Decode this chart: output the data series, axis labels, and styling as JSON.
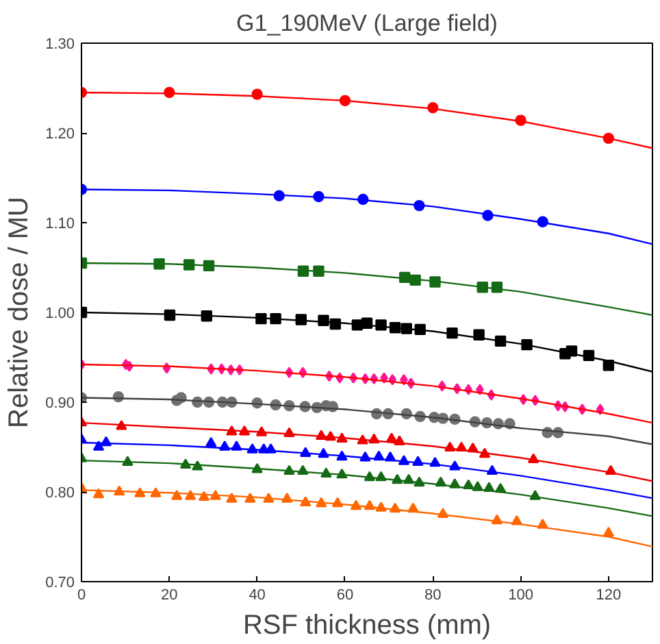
{
  "chart_data": {
    "type": "scatter",
    "title": "G1_190MeV (Large field)",
    "xlabel": "RSF thickness (mm)",
    "ylabel": "Relative dose / MU",
    "xlim": [
      0,
      130
    ],
    "ylim": [
      0.7,
      1.3
    ],
    "xticks": [
      0,
      20,
      40,
      60,
      80,
      100,
      120
    ],
    "yticks": [
      {
        "value": 0.7,
        "label": "0.70"
      },
      {
        "value": 0.8,
        "label": "0.80"
      },
      {
        "value": 0.9,
        "label": "0.90"
      },
      {
        "value": 1.0,
        "label": "1.00"
      },
      {
        "value": 1.1,
        "label": "1.10"
      },
      {
        "value": 1.2,
        "label": "1.20"
      },
      {
        "value": 1.3,
        "label": "1.30"
      }
    ],
    "grid": false,
    "series": [
      {
        "marker": "circle",
        "color": "#ff0000",
        "x": [
          0,
          20,
          40,
          60,
          80,
          100,
          120
        ],
        "values": [
          1.245,
          1.245,
          1.243,
          1.236,
          1.228,
          1.214,
          1.194
        ]
      },
      {
        "marker": "circle",
        "color": "#0000ff",
        "x": [
          0,
          45,
          54,
          64.1,
          76.9,
          92.5,
          105
        ],
        "values": [
          1.137,
          1.13,
          1.129,
          1.126,
          1.119,
          1.108,
          1.101
        ]
      },
      {
        "marker": "square",
        "color": "#156b15",
        "x": [
          0,
          17.7,
          24.5,
          29,
          50.5,
          54,
          73.6,
          76,
          80.5,
          91.3,
          94.6
        ],
        "values": [
          1.055,
          1.054,
          1.053,
          1.052,
          1.046,
          1.046,
          1.039,
          1.036,
          1.034,
          1.028,
          1.028
        ]
      },
      {
        "marker": "square",
        "color": "#000000",
        "x": [
          0,
          20.1,
          28.5,
          40.9,
          44.2,
          50,
          55.1,
          57.8,
          62.8,
          65,
          68.2,
          71.4,
          74,
          77.1,
          84.4,
          90.5,
          95.4,
          101.4,
          110.1,
          111.6,
          115.5,
          120
        ],
        "values": [
          1.0,
          0.997,
          0.996,
          0.993,
          0.993,
          0.992,
          0.991,
          0.987,
          0.986,
          0.988,
          0.986,
          0.983,
          0.982,
          0.981,
          0.977,
          0.975,
          0.968,
          0.964,
          0.954,
          0.957,
          0.952,
          0.941
        ]
      },
      {
        "marker": "diamond",
        "color": "#ff1493",
        "x": [
          0,
          10.1,
          10.9,
          19.4,
          29.5,
          31.9,
          34,
          36,
          47.3,
          50.4,
          56.4,
          58.8,
          61.9,
          64.6,
          66.6,
          68.9,
          70.8,
          73.4,
          75,
          82.1,
          85.5,
          88.1,
          90.7,
          93.3,
          100.6,
          103.3,
          108.5,
          110.1,
          114,
          118.1
        ],
        "values": [
          0.942,
          0.942,
          0.94,
          0.938,
          0.937,
          0.937,
          0.936,
          0.936,
          0.933,
          0.933,
          0.929,
          0.927,
          0.927,
          0.926,
          0.926,
          0.927,
          0.925,
          0.925,
          0.921,
          0.918,
          0.915,
          0.914,
          0.914,
          0.908,
          0.903,
          0.902,
          0.896,
          0.895,
          0.892,
          0.892
        ]
      },
      {
        "marker": "circle",
        "color": "#707070",
        "x": [
          0,
          8.4,
          21.7,
          22.7,
          26.4,
          29,
          32.1,
          34.2,
          40,
          44.2,
          47.3,
          50.9,
          53.6,
          55.7,
          57.2,
          67.2,
          69.8,
          74,
          77.1,
          80.3,
          82.3,
          85,
          89.6,
          92.3,
          94.9,
          97.5,
          106.1,
          108.5
        ],
        "values": [
          0.905,
          0.906,
          0.902,
          0.905,
          0.9,
          0.9,
          0.9,
          0.9,
          0.899,
          0.897,
          0.896,
          0.895,
          0.894,
          0.896,
          0.895,
          0.887,
          0.887,
          0.887,
          0.884,
          0.883,
          0.882,
          0.881,
          0.878,
          0.877,
          0.876,
          0.876,
          0.866,
          0.866
        ]
      },
      {
        "marker": "triangle",
        "color": "#ee0000",
        "x": [
          0,
          9.1,
          34.2,
          37.1,
          41,
          47.3,
          54.6,
          56.7,
          59.3,
          64,
          66.6,
          70.6,
          72.4,
          83.9,
          86.5,
          89.1,
          91.8,
          102.9,
          120.5
        ],
        "values": [
          0.877,
          0.873,
          0.867,
          0.867,
          0.866,
          0.865,
          0.862,
          0.861,
          0.859,
          0.857,
          0.858,
          0.859,
          0.856,
          0.849,
          0.849,
          0.848,
          0.842,
          0.836,
          0.823
        ]
      },
      {
        "marker": "triangle",
        "color": "#0000ff",
        "x": [
          0,
          3.9,
          5.6,
          29.5,
          32.6,
          35.3,
          38.9,
          41.5,
          43.1,
          51,
          55.1,
          59.3,
          64.6,
          67.7,
          70.3,
          73.4,
          76.6,
          80.5,
          85,
          93.5
        ],
        "values": [
          0.858,
          0.85,
          0.855,
          0.854,
          0.85,
          0.85,
          0.847,
          0.847,
          0.847,
          0.843,
          0.842,
          0.839,
          0.838,
          0.839,
          0.838,
          0.834,
          0.833,
          0.832,
          0.828,
          0.823
        ]
      },
      {
        "marker": "triangle",
        "color": "#156b15",
        "x": [
          0,
          10.5,
          23.7,
          26.4,
          40,
          47.3,
          50.4,
          55.7,
          59.3,
          65.6,
          68.2,
          71.9,
          74.5,
          76.9,
          81.8,
          85,
          88.1,
          90.2,
          92.8,
          95.4,
          103.3
        ],
        "values": [
          0.837,
          0.833,
          0.83,
          0.828,
          0.825,
          0.823,
          0.823,
          0.82,
          0.819,
          0.816,
          0.816,
          0.813,
          0.813,
          0.81,
          0.81,
          0.808,
          0.807,
          0.805,
          0.804,
          0.803,
          0.795
        ]
      },
      {
        "marker": "triangle",
        "color": "#ff6600",
        "x": [
          0,
          3.9,
          8.6,
          13.3,
          16.9,
          21.7,
          24.8,
          27.9,
          30.5,
          34.2,
          38.4,
          42.6,
          46.8,
          51,
          54.6,
          58.3,
          62.5,
          65.6,
          68.2,
          71.4,
          75.5,
          82.3,
          94.6,
          99.1,
          105,
          120
        ],
        "values": [
          0.804,
          0.797,
          0.8,
          0.798,
          0.798,
          0.795,
          0.795,
          0.794,
          0.795,
          0.792,
          0.792,
          0.792,
          0.792,
          0.788,
          0.787,
          0.787,
          0.784,
          0.784,
          0.782,
          0.781,
          0.781,
          0.775,
          0.768,
          0.767,
          0.763,
          0.754
        ]
      },
      {
        "type": "line",
        "marker": "none",
        "color": "#ff0000",
        "x": [
          0,
          20,
          40,
          60,
          80,
          100,
          120,
          130
        ],
        "values": [
          1.245,
          1.244,
          1.241,
          1.236,
          1.227,
          1.213,
          1.194,
          1.183
        ]
      },
      {
        "type": "line",
        "marker": "none",
        "color": "#0000ff",
        "x": [
          0,
          20,
          40,
          60,
          80,
          100,
          120,
          130
        ],
        "values": [
          1.137,
          1.136,
          1.132,
          1.127,
          1.118,
          1.104,
          1.088,
          1.076
        ]
      },
      {
        "type": "line",
        "marker": "none",
        "color": "#156b15",
        "x": [
          0,
          20,
          40,
          60,
          80,
          100,
          120,
          130
        ],
        "values": [
          1.055,
          1.054,
          1.05,
          1.044,
          1.035,
          1.023,
          1.006,
          0.997
        ]
      },
      {
        "type": "line",
        "marker": "none",
        "color": "#000000",
        "x": [
          0,
          20,
          40,
          60,
          80,
          100,
          120,
          130
        ],
        "values": [
          1.0,
          0.998,
          0.994,
          0.988,
          0.979,
          0.965,
          0.946,
          0.934
        ]
      },
      {
        "type": "line",
        "marker": "none",
        "color": "#ff0000",
        "x": [
          0,
          20,
          40,
          60,
          80,
          100,
          120,
          130
        ],
        "values": [
          0.942,
          0.94,
          0.935,
          0.928,
          0.918,
          0.904,
          0.887,
          0.877
        ]
      },
      {
        "type": "line",
        "marker": "none",
        "color": "#404040",
        "x": [
          0,
          20,
          40,
          60,
          80,
          100,
          120,
          130
        ],
        "values": [
          0.905,
          0.903,
          0.898,
          0.892,
          0.883,
          0.871,
          0.862,
          0.853
        ]
      },
      {
        "type": "line",
        "marker": "none",
        "color": "#ee0000",
        "x": [
          0,
          20,
          40,
          60,
          80,
          100,
          120,
          130
        ],
        "values": [
          0.877,
          0.872,
          0.867,
          0.86,
          0.851,
          0.838,
          0.822,
          0.812
        ]
      },
      {
        "type": "line",
        "marker": "none",
        "color": "#0000ff",
        "x": [
          0,
          20,
          40,
          60,
          80,
          100,
          120,
          130
        ],
        "values": [
          0.855,
          0.852,
          0.847,
          0.84,
          0.831,
          0.818,
          0.802,
          0.793
        ]
      },
      {
        "type": "line",
        "marker": "none",
        "color": "#156b15",
        "x": [
          0,
          20,
          40,
          60,
          80,
          100,
          120,
          130
        ],
        "values": [
          0.835,
          0.832,
          0.826,
          0.819,
          0.809,
          0.797,
          0.782,
          0.773
        ]
      },
      {
        "type": "line",
        "marker": "none",
        "color": "#ff6600",
        "x": [
          0,
          20,
          40,
          60,
          80,
          100,
          120,
          130
        ],
        "values": [
          0.802,
          0.799,
          0.794,
          0.786,
          0.776,
          0.764,
          0.75,
          0.739
        ]
      }
    ]
  }
}
